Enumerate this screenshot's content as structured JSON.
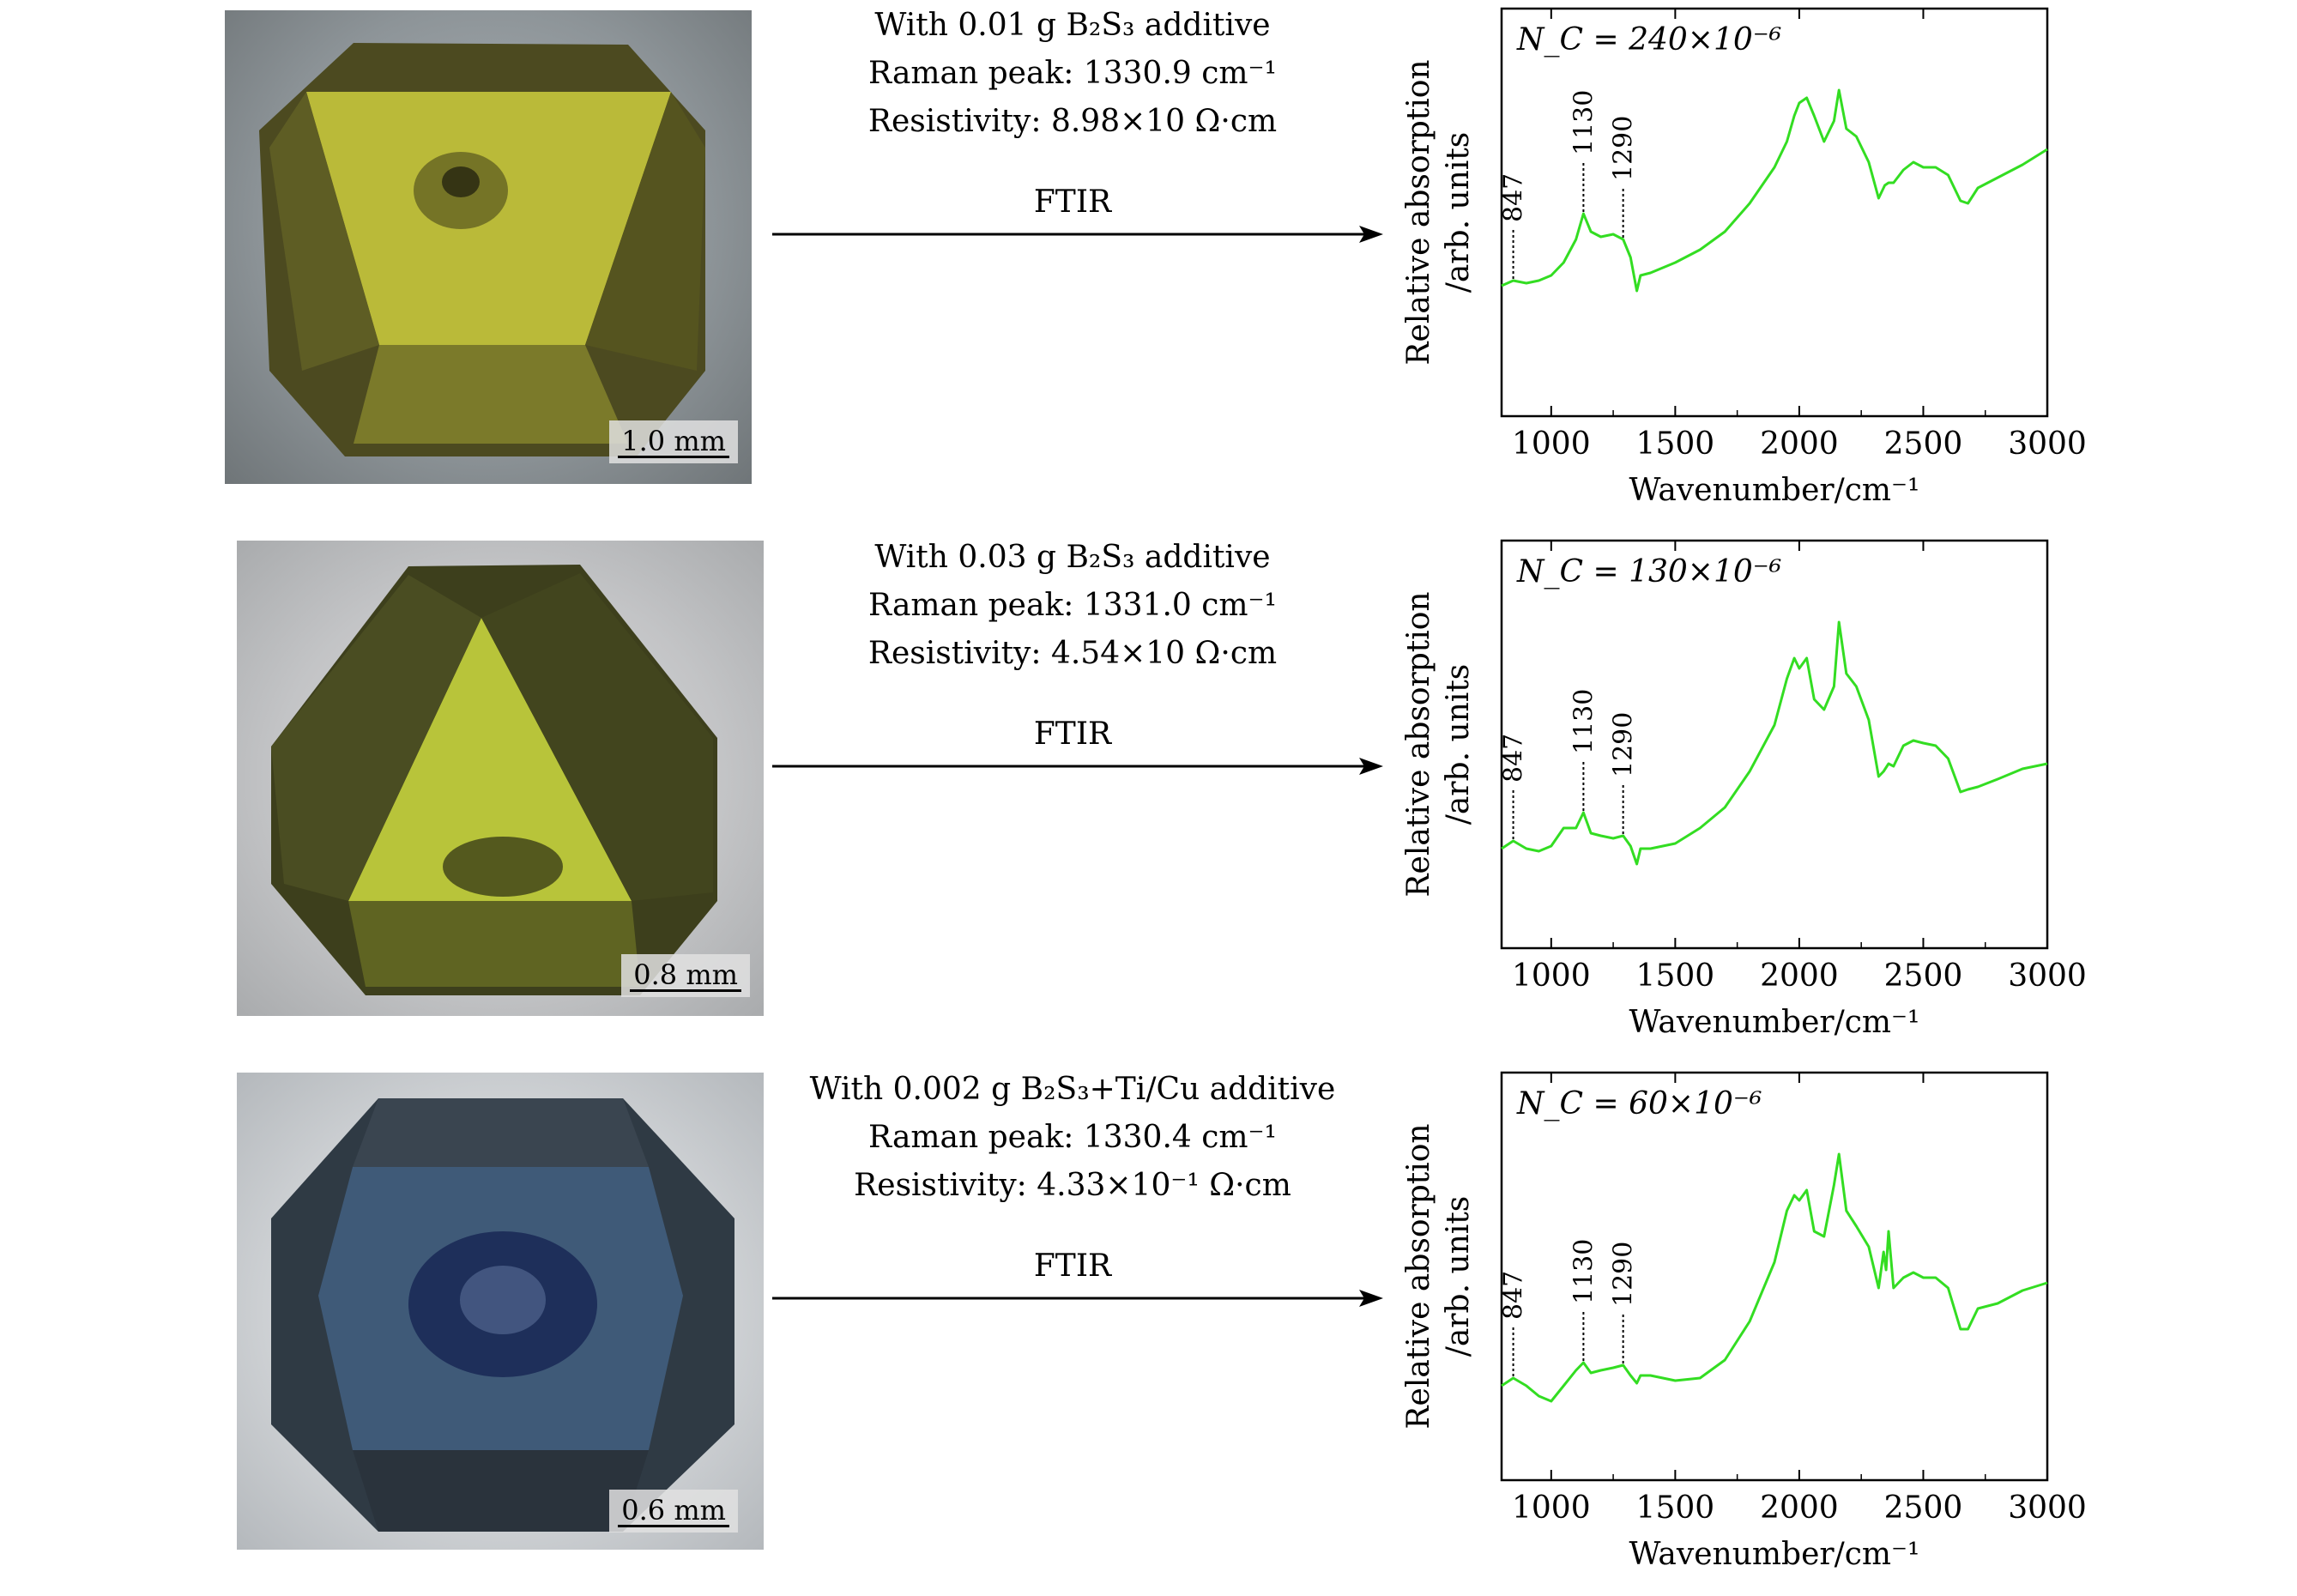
{
  "rows": [
    {
      "caption": {
        "line1": "With 0.01 g B₂S₃ additive",
        "line2": "Raman peak: 1330.9 cm⁻¹",
        "line3": "Resistivity: 8.98×10 Ω·cm"
      },
      "scale": "1.0 mm",
      "crystal_color": "#c4c63a",
      "ftir": "FTIR"
    },
    {
      "caption": {
        "line1": "With 0.03 g B₂S₃ additive",
        "line2": "Raman peak: 1331.0 cm⁻¹",
        "line3": "Resistivity: 4.54×10 Ω·cm"
      },
      "scale": "0.8 mm",
      "crystal_color": "#b8c43a",
      "ftir": "FTIR"
    },
    {
      "caption": {
        "line1": "With 0.002 g B₂S₃+Ti/Cu additive",
        "line2": "Raman peak: 1330.4 cm⁻¹",
        "line3": "Resistivity: 4.33×10⁻¹ Ω·cm"
      },
      "scale": "0.6 mm",
      "crystal_color": "#3f5a78",
      "ftir": "FTIR"
    }
  ],
  "chart_data": [
    {
      "type": "line",
      "annotation": "N_C = 240×10⁻⁶",
      "xlabel": "Wavenumber/cm⁻¹",
      "ylabel_line1": "Relative absorption",
      "ylabel_line2": "/arb. units",
      "xlim": [
        800,
        3000
      ],
      "ylim": [
        0,
        1
      ],
      "xticks": [
        1000,
        1500,
        2000,
        2500,
        3000
      ],
      "line_color": "#33dd22",
      "peak_labels": [
        {
          "x": 847,
          "label": "847"
        },
        {
          "x": 1130,
          "label": "1130"
        },
        {
          "x": 1290,
          "label": "1290"
        }
      ],
      "x": [
        800,
        847,
        900,
        950,
        1000,
        1050,
        1100,
        1130,
        1160,
        1200,
        1250,
        1290,
        1320,
        1345,
        1360,
        1400,
        1500,
        1600,
        1700,
        1800,
        1900,
        1950,
        1980,
        2000,
        2030,
        2060,
        2100,
        2140,
        2160,
        2190,
        2230,
        2280,
        2320,
        2345,
        2360,
        2380,
        2420,
        2460,
        2500,
        2550,
        2600,
        2650,
        2680,
        2720,
        2800,
        2900,
        3000
      ],
      "y": [
        0.24,
        0.26,
        0.25,
        0.26,
        0.28,
        0.33,
        0.42,
        0.52,
        0.45,
        0.43,
        0.44,
        0.42,
        0.35,
        0.22,
        0.28,
        0.29,
        0.33,
        0.38,
        0.45,
        0.56,
        0.7,
        0.8,
        0.9,
        0.95,
        0.97,
        0.9,
        0.8,
        0.88,
        1.0,
        0.85,
        0.82,
        0.72,
        0.58,
        0.63,
        0.64,
        0.64,
        0.69,
        0.72,
        0.7,
        0.7,
        0.67,
        0.57,
        0.56,
        0.62,
        0.66,
        0.71,
        0.77
      ]
    },
    {
      "type": "line",
      "annotation": "N_C = 130×10⁻⁶",
      "xlabel": "Wavenumber/cm⁻¹",
      "ylabel_line1": "Relative absorption",
      "ylabel_line2": "/arb. units",
      "xlim": [
        800,
        3000
      ],
      "ylim": [
        0,
        1
      ],
      "xticks": [
        1000,
        1500,
        2000,
        2500,
        3000
      ],
      "line_color": "#33dd22",
      "peak_labels": [
        {
          "x": 847,
          "label": "847"
        },
        {
          "x": 1130,
          "label": "1130"
        },
        {
          "x": 1290,
          "label": "1290"
        }
      ],
      "x": [
        800,
        847,
        900,
        950,
        1000,
        1050,
        1100,
        1130,
        1160,
        1200,
        1250,
        1290,
        1320,
        1345,
        1360,
        1400,
        1500,
        1600,
        1700,
        1800,
        1900,
        1950,
        1980,
        2000,
        2030,
        2060,
        2100,
        2140,
        2160,
        2190,
        2230,
        2280,
        2320,
        2340,
        2360,
        2380,
        2420,
        2460,
        2500,
        2550,
        2600,
        2650,
        2680,
        2720,
        2800,
        2900,
        3000
      ],
      "y": [
        0.12,
        0.15,
        0.12,
        0.11,
        0.13,
        0.2,
        0.2,
        0.26,
        0.18,
        0.17,
        0.16,
        0.17,
        0.13,
        0.06,
        0.12,
        0.12,
        0.14,
        0.2,
        0.28,
        0.42,
        0.6,
        0.78,
        0.86,
        0.82,
        0.86,
        0.7,
        0.66,
        0.75,
        1.0,
        0.8,
        0.75,
        0.62,
        0.4,
        0.42,
        0.45,
        0.44,
        0.52,
        0.54,
        0.53,
        0.52,
        0.47,
        0.34,
        0.35,
        0.36,
        0.39,
        0.43,
        0.45
      ]
    },
    {
      "type": "line",
      "annotation": "N_C = 60×10⁻⁶",
      "xlabel": "Wavenumber/cm⁻¹",
      "ylabel_line1": "Relative absorption",
      "ylabel_line2": "/arb. units",
      "xlim": [
        800,
        3000
      ],
      "ylim": [
        0,
        1
      ],
      "xticks": [
        1000,
        1500,
        2000,
        2500,
        3000
      ],
      "line_color": "#33dd22",
      "peak_labels": [
        {
          "x": 847,
          "label": "847"
        },
        {
          "x": 1130,
          "label": "1130"
        },
        {
          "x": 1290,
          "label": "1290"
        }
      ],
      "x": [
        800,
        847,
        900,
        950,
        1000,
        1050,
        1100,
        1130,
        1160,
        1200,
        1250,
        1290,
        1320,
        1345,
        1360,
        1400,
        1500,
        1600,
        1700,
        1800,
        1900,
        1950,
        1980,
        2000,
        2030,
        2060,
        2100,
        2140,
        2160,
        2190,
        2230,
        2280,
        2320,
        2340,
        2350,
        2360,
        2380,
        2420,
        2460,
        2500,
        2550,
        2600,
        2650,
        2680,
        2720,
        2800,
        2900,
        3000
      ],
      "y": [
        0.1,
        0.13,
        0.1,
        0.06,
        0.04,
        0.1,
        0.16,
        0.19,
        0.15,
        0.16,
        0.17,
        0.18,
        0.14,
        0.11,
        0.14,
        0.14,
        0.12,
        0.13,
        0.2,
        0.35,
        0.58,
        0.78,
        0.84,
        0.82,
        0.86,
        0.7,
        0.68,
        0.88,
        1.0,
        0.78,
        0.72,
        0.64,
        0.48,
        0.62,
        0.55,
        0.7,
        0.48,
        0.52,
        0.54,
        0.52,
        0.52,
        0.48,
        0.32,
        0.32,
        0.4,
        0.42,
        0.47,
        0.5
      ]
    }
  ]
}
